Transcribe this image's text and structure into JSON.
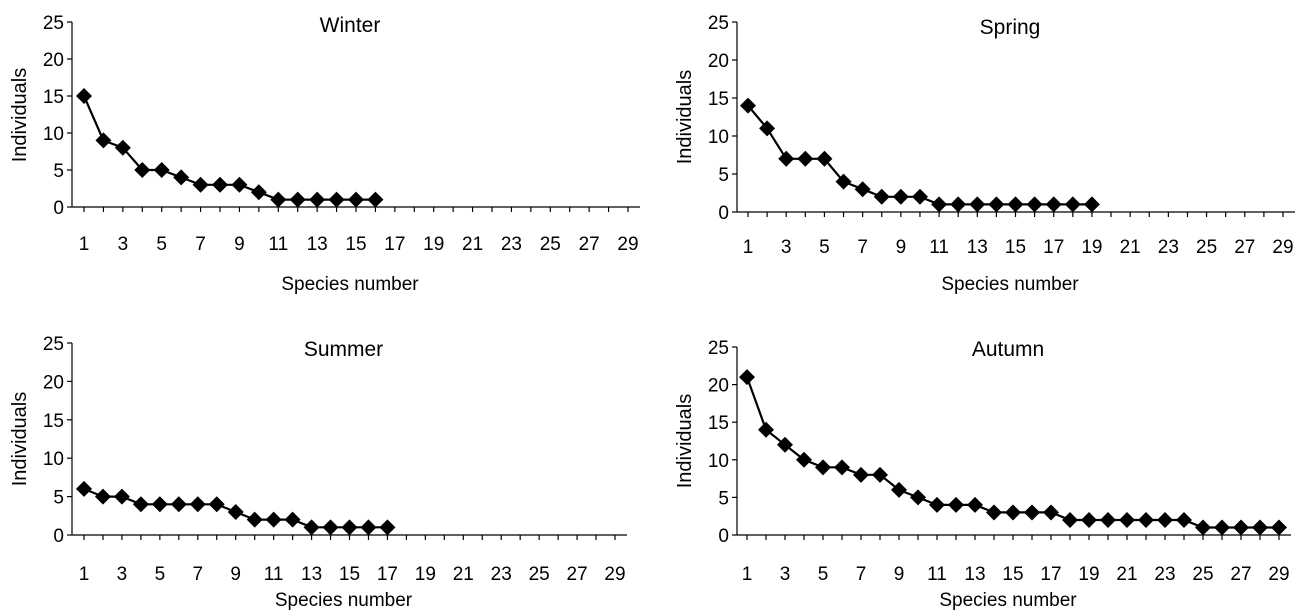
{
  "chart_data": [
    {
      "type": "line",
      "title": "Winter",
      "xlabel": "Species number",
      "ylabel": "Individuals",
      "xlim": [
        1,
        29
      ],
      "ylim": [
        0,
        25
      ],
      "x_ticks": [
        1,
        3,
        5,
        7,
        9,
        11,
        13,
        15,
        17,
        19,
        21,
        23,
        25,
        27,
        29
      ],
      "y_ticks": [
        0,
        5,
        10,
        15,
        20,
        25
      ],
      "marker": "diamond",
      "color": "#000000",
      "grid": false,
      "x": [
        1,
        2,
        3,
        4,
        5,
        6,
        7,
        8,
        9,
        10,
        11,
        12,
        13,
        14,
        15,
        16
      ],
      "values": [
        15,
        9,
        8,
        5,
        5,
        4,
        3,
        3,
        3,
        2,
        1,
        1,
        1,
        1,
        1,
        1
      ]
    },
    {
      "type": "line",
      "title": "Spring",
      "xlabel": "Species number",
      "ylabel": "Individuals",
      "xlim": [
        1,
        29
      ],
      "ylim": [
        0,
        25
      ],
      "x_ticks": [
        1,
        3,
        5,
        7,
        9,
        11,
        13,
        15,
        17,
        19,
        21,
        23,
        25,
        27,
        29
      ],
      "y_ticks": [
        0,
        5,
        10,
        15,
        20,
        25
      ],
      "marker": "diamond",
      "color": "#000000",
      "grid": false,
      "x": [
        1,
        2,
        3,
        4,
        5,
        6,
        7,
        8,
        9,
        10,
        11,
        12,
        13,
        14,
        15,
        16,
        17,
        18,
        19
      ],
      "values": [
        14,
        11,
        7,
        7,
        7,
        4,
        3,
        2,
        2,
        2,
        1,
        1,
        1,
        1,
        1,
        1,
        1,
        1,
        1
      ]
    },
    {
      "type": "line",
      "title": "Summer",
      "xlabel": "Species number",
      "ylabel": "Individuals",
      "xlim": [
        1,
        29
      ],
      "ylim": [
        0,
        25
      ],
      "x_ticks": [
        1,
        3,
        5,
        7,
        9,
        11,
        13,
        15,
        17,
        19,
        21,
        23,
        25,
        27,
        29
      ],
      "y_ticks": [
        0,
        5,
        10,
        15,
        20,
        25
      ],
      "marker": "diamond",
      "color": "#000000",
      "grid": false,
      "x": [
        1,
        2,
        3,
        4,
        5,
        6,
        7,
        8,
        9,
        10,
        11,
        12,
        13,
        14,
        15,
        16,
        17
      ],
      "values": [
        6,
        5,
        5,
        4,
        4,
        4,
        4,
        4,
        3,
        2,
        2,
        2,
        1,
        1,
        1,
        1,
        1
      ]
    },
    {
      "type": "line",
      "title": "Autumn",
      "xlabel": "Species number",
      "ylabel": "Individuals",
      "xlim": [
        1,
        29
      ],
      "ylim": [
        0,
        25
      ],
      "x_ticks": [
        1,
        3,
        5,
        7,
        9,
        11,
        13,
        15,
        17,
        19,
        21,
        23,
        25,
        27,
        29
      ],
      "y_ticks": [
        0,
        5,
        10,
        15,
        20,
        25
      ],
      "marker": "diamond",
      "color": "#000000",
      "grid": false,
      "x": [
        1,
        2,
        3,
        4,
        5,
        6,
        7,
        8,
        9,
        10,
        11,
        12,
        13,
        14,
        15,
        16,
        17,
        18,
        19,
        20,
        21,
        22,
        23,
        24,
        25,
        26,
        27,
        28,
        29
      ],
      "values": [
        21,
        14,
        12,
        10,
        9,
        9,
        8,
        8,
        6,
        5,
        4,
        4,
        4,
        3,
        3,
        3,
        3,
        2,
        2,
        2,
        2,
        2,
        2,
        2,
        1,
        1,
        1,
        1,
        1
      ]
    }
  ]
}
